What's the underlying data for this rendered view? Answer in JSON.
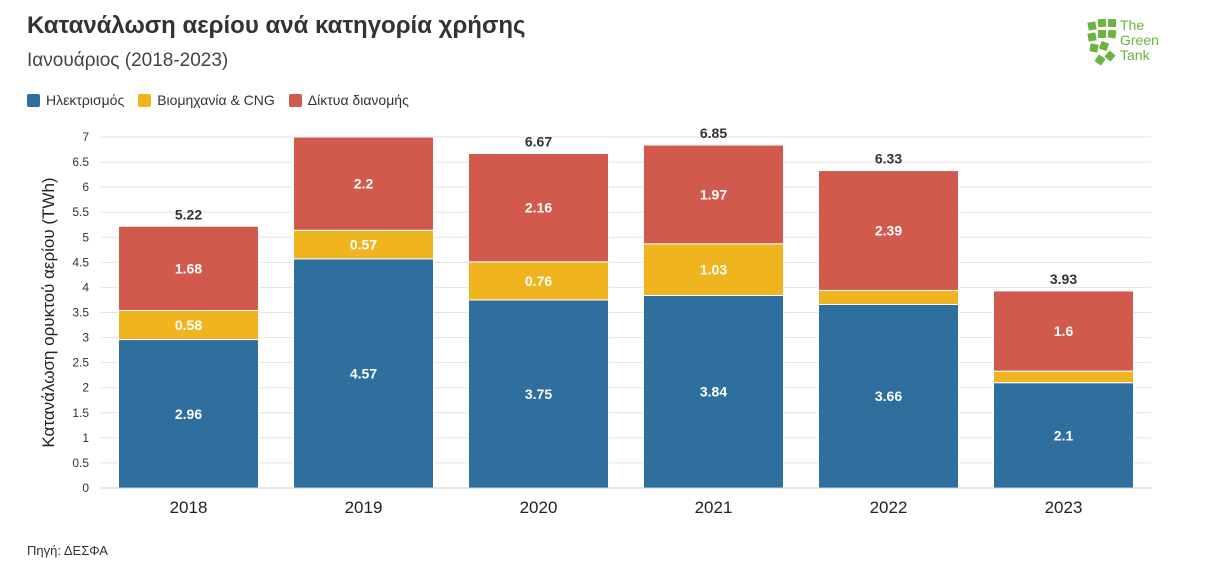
{
  "title": "Κατανάλωση αερίου ανά κατηγορία χρήσης",
  "subtitle": "Ιανουάριος (2018-2023)",
  "source": "Πηγή: ΔΕΣΦΑ",
  "logo": {
    "line1": "The",
    "line2": "Green",
    "line3": "Tank"
  },
  "colors": {
    "electricity": "#2e6f9e",
    "industry": "#f0b51e",
    "networks": "#d25a4c"
  },
  "chart_data": {
    "type": "bar",
    "stacked": true,
    "categories": [
      "2018",
      "2019",
      "2020",
      "2021",
      "2022",
      "2023"
    ],
    "series": [
      {
        "name": "Ηλεκτρισμός",
        "values": [
          2.96,
          4.57,
          3.75,
          3.84,
          3.66,
          2.1
        ],
        "labels": [
          "2.96",
          "4.57",
          "3.75",
          "3.84",
          "3.66",
          "2.1"
        ]
      },
      {
        "name": "Βιομηχανία & CNG",
        "values": [
          0.58,
          0.57,
          0.76,
          1.03,
          0.28,
          0.23
        ],
        "labels": [
          "0.58",
          "0.57",
          "0.76",
          "1.03",
          "",
          ""
        ]
      },
      {
        "name": "Δίκτυα διανομής",
        "values": [
          1.68,
          2.2,
          2.16,
          1.97,
          2.39,
          1.6
        ],
        "labels": [
          "1.68",
          "2.2",
          "2.16",
          "1.97",
          "2.39",
          "1.6"
        ]
      }
    ],
    "totals": [
      "5.22",
      "",
      "6.67",
      "6.85",
      "6.33",
      "3.93"
    ],
    "ylabel": "Κατανάλωση ορυκτού αερίου (TWh)",
    "xlabel": "",
    "ylim": [
      0,
      7
    ],
    "yticks": [
      "0",
      "0.5",
      "1",
      "1.5",
      "2",
      "2.5",
      "3",
      "3.5",
      "4",
      "4.5",
      "5",
      "5.5",
      "6",
      "6.5",
      "7"
    ],
    "legend_position": "top-left",
    "grid": true
  }
}
